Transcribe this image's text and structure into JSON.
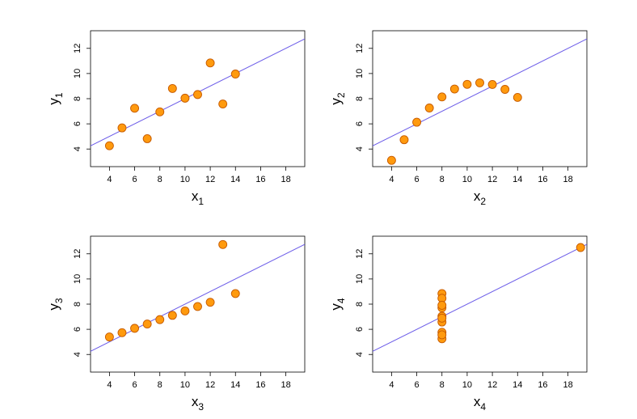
{
  "chart_data": [
    {
      "type": "scatter",
      "xlabel": "x",
      "xlabel_sub": "1",
      "ylabel": "y",
      "ylabel_sub": "1",
      "xlim": [
        2.5,
        19.5
      ],
      "ylim": [
        2.6,
        13.4
      ],
      "xticks": [
        "4",
        "6",
        "8",
        "10",
        "12",
        "14",
        "16",
        "18"
      ],
      "yticks": [
        "4",
        "6",
        "8",
        "10",
        "12"
      ],
      "grid": false,
      "x": [
        10,
        8,
        13,
        9,
        11,
        14,
        6,
        4,
        12,
        7,
        5
      ],
      "y": [
        8.04,
        6.95,
        7.58,
        8.81,
        8.33,
        9.96,
        7.24,
        4.26,
        10.84,
        4.82,
        5.68
      ],
      "fit": {
        "intercept": 3.0,
        "slope": 0.5
      },
      "point_color": "#ff9a0e",
      "line_color": "#6a5ae8"
    },
    {
      "type": "scatter",
      "xlabel": "x",
      "xlabel_sub": "2",
      "ylabel": "y",
      "ylabel_sub": "2",
      "xlim": [
        2.5,
        19.5
      ],
      "ylim": [
        2.6,
        13.4
      ],
      "xticks": [
        "4",
        "6",
        "8",
        "10",
        "12",
        "14",
        "16",
        "18"
      ],
      "yticks": [
        "4",
        "6",
        "8",
        "10",
        "12"
      ],
      "grid": false,
      "x": [
        10,
        8,
        13,
        9,
        11,
        14,
        6,
        4,
        12,
        7,
        5
      ],
      "y": [
        9.14,
        8.14,
        8.74,
        8.77,
        9.26,
        8.1,
        6.13,
        3.1,
        9.13,
        7.26,
        4.74
      ],
      "fit": {
        "intercept": 3.0,
        "slope": 0.5
      },
      "point_color": "#ff9a0e",
      "line_color": "#6a5ae8"
    },
    {
      "type": "scatter",
      "xlabel": "x",
      "xlabel_sub": "3",
      "ylabel": "y",
      "ylabel_sub": "3",
      "xlim": [
        2.5,
        19.5
      ],
      "ylim": [
        2.6,
        13.4
      ],
      "xticks": [
        "4",
        "6",
        "8",
        "10",
        "12",
        "14",
        "16",
        "18"
      ],
      "yticks": [
        "4",
        "6",
        "8",
        "10",
        "12"
      ],
      "grid": false,
      "x": [
        10,
        8,
        13,
        9,
        11,
        14,
        6,
        4,
        12,
        7,
        5
      ],
      "y": [
        7.46,
        6.77,
        12.74,
        7.11,
        7.81,
        8.84,
        6.08,
        5.39,
        8.15,
        6.42,
        5.73
      ],
      "fit": {
        "intercept": 3.0,
        "slope": 0.5
      },
      "point_color": "#ff9a0e",
      "line_color": "#6a5ae8"
    },
    {
      "type": "scatter",
      "xlabel": "x",
      "xlabel_sub": "4",
      "ylabel": "y",
      "ylabel_sub": "4",
      "xlim": [
        2.5,
        19.5
      ],
      "ylim": [
        2.6,
        13.4
      ],
      "xticks": [
        "4",
        "6",
        "8",
        "10",
        "12",
        "14",
        "16",
        "18"
      ],
      "yticks": [
        "4",
        "6",
        "8",
        "10",
        "12"
      ],
      "grid": false,
      "x": [
        8,
        8,
        8,
        8,
        8,
        8,
        8,
        19,
        8,
        8,
        8
      ],
      "y": [
        6.58,
        5.76,
        7.71,
        8.84,
        8.47,
        7.04,
        5.25,
        12.5,
        5.56,
        7.91,
        6.89
      ],
      "fit": {
        "intercept": 3.0,
        "slope": 0.5
      },
      "point_color": "#ff9a0e",
      "line_color": "#6a5ae8"
    }
  ]
}
